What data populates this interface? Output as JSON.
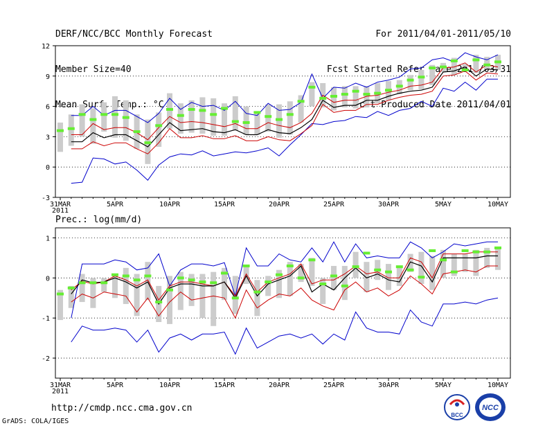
{
  "header": {
    "line1": "DERF/NCC/BCC Monthly Forecast",
    "line2": "Member Size=40",
    "line3": "Mean Surf. Temp.: °C",
    "right1": "For 2011/04/01-2011/05/10",
    "right2": "Fcst Started Refer Date 2011/03/31",
    "right3": "Fcst Produced Date 2011/04/01"
  },
  "footer": {
    "url": "http://cmdp.ncc.cma.gov.cn",
    "grads": "GrADS: COLA/IGES",
    "logo_bcc": "BCC",
    "logo_ncc": "NCC"
  },
  "colors": {
    "box": "#cccccc",
    "mean": "#000000",
    "sd": "#cc0000",
    "minmax": "#0000cc",
    "median": "#66ee33"
  },
  "chart_data": [
    {
      "type": "box-whisker-line",
      "title": "Mean Surf. Temp.: °C",
      "x_days": 41,
      "x_tick_labels": [
        "31MAR\n2011",
        "5APR",
        "10APR",
        "15APR",
        "20APR",
        "25APR",
        "30APR",
        "5MAY",
        "10MAY"
      ],
      "ylim": [
        -3,
        12
      ],
      "yticks": [
        -3,
        0,
        3,
        6,
        9,
        12
      ],
      "series": {
        "max": [
          null,
          5.1,
          5.1,
          6.0,
          5.1,
          5.6,
          5.6,
          5.0,
          4.4,
          5.3,
          6.8,
          5.7,
          6.4,
          6.0,
          6.1,
          5.6,
          6.5,
          5.3,
          5.1,
          6.3,
          5.6,
          5.7,
          6.4,
          9.2,
          6.8,
          7.9,
          7.8,
          8.3,
          7.9,
          8.4,
          8.6,
          8.9,
          9.7,
          9.8,
          10.6,
          10.8,
          10.4,
          11.3,
          10.9,
          10.6,
          11.1
        ],
        "sd_up": [
          null,
          3.2,
          3.2,
          4.3,
          3.7,
          3.9,
          3.9,
          3.4,
          2.7,
          3.9,
          5.0,
          4.4,
          4.5,
          4.4,
          4.2,
          4.0,
          4.3,
          3.8,
          3.8,
          4.4,
          4.1,
          3.9,
          4.4,
          5.3,
          7.1,
          6.4,
          6.6,
          6.6,
          7.0,
          7.1,
          7.4,
          7.6,
          8.0,
          8.1,
          8.4,
          9.8,
          9.9,
          10.3,
          9.4,
          10.1,
          9.9
        ],
        "mean": [
          null,
          2.5,
          2.5,
          3.4,
          2.9,
          3.2,
          3.2,
          2.6,
          2.0,
          3.2,
          4.4,
          3.6,
          3.7,
          3.8,
          3.5,
          3.4,
          3.7,
          3.2,
          3.2,
          3.7,
          3.4,
          3.3,
          3.9,
          4.7,
          6.6,
          5.9,
          6.1,
          6.1,
          6.6,
          6.6,
          7.0,
          7.3,
          7.5,
          7.6,
          7.9,
          9.4,
          9.5,
          9.9,
          9.0,
          9.7,
          9.6
        ],
        "sd_low": [
          null,
          1.8,
          1.8,
          2.5,
          2.1,
          2.4,
          2.4,
          1.8,
          1.3,
          2.4,
          3.8,
          2.9,
          2.9,
          3.1,
          2.8,
          2.8,
          3.1,
          2.6,
          2.6,
          3.0,
          2.7,
          2.6,
          3.3,
          4.1,
          6.2,
          5.4,
          5.6,
          5.6,
          6.2,
          6.2,
          6.6,
          6.9,
          7.1,
          7.2,
          7.5,
          9.0,
          9.1,
          9.5,
          8.6,
          9.3,
          9.2
        ],
        "min": [
          null,
          -1.6,
          -1.5,
          0.9,
          0.8,
          0.3,
          0.5,
          -0.3,
          -1.3,
          0.2,
          1.0,
          1.3,
          1.2,
          1.6,
          1.1,
          1.3,
          1.5,
          1.4,
          1.6,
          1.9,
          1.1,
          2.2,
          3.2,
          4.3,
          4.2,
          4.5,
          4.6,
          5.0,
          4.9,
          5.5,
          5.1,
          5.6,
          5.8,
          6.5,
          6.0,
          7.8,
          7.5,
          8.4,
          7.6,
          8.7,
          8.7
        ],
        "median": [
          3.6,
          3.8,
          5.2,
          4.7,
          5.2,
          5.2,
          4.9,
          3.5,
          2.4,
          4.1,
          5.7,
          5.1,
          5.7,
          5.6,
          5.2,
          5.8,
          4.5,
          4.4,
          5.4,
          5.0,
          4.7,
          5.2,
          6.5,
          7.9,
          6.8,
          7.0,
          7.2,
          7.5,
          7.2,
          7.3,
          7.6,
          8.0,
          8.6,
          8.9,
          9.8,
          9.9,
          10.5,
          9.6,
          10.6,
          10.1,
          10.4
        ],
        "box_top": [
          4.4,
          5.2,
          6.2,
          5.8,
          6.4,
          7.0,
          6.6,
          5.2,
          4.7,
          5.4,
          7.3,
          6.3,
          6.6,
          6.9,
          6.8,
          6.3,
          7.0,
          6.0,
          5.5,
          6.2,
          6.2,
          6.5,
          7.1,
          8.4,
          8.3,
          7.9,
          8.0,
          8.0,
          8.0,
          8.3,
          8.5,
          8.6,
          9.1,
          9.6,
          10.1,
          10.3,
          10.8,
          10.2,
          11.1,
          10.9,
          11.1
        ],
        "box_bot": [
          1.5,
          2.1,
          3.0,
          2.3,
          3.5,
          2.9,
          2.6,
          1.8,
          0.3,
          2.0,
          3.8,
          3.3,
          3.4,
          3.3,
          3.1,
          3.1,
          3.6,
          3.2,
          3.2,
          3.5,
          2.9,
          3.2,
          4.4,
          6.0,
          5.9,
          5.6,
          5.9,
          5.8,
          5.9,
          6.3,
          6.6,
          7.2,
          7.6,
          7.7,
          8.1,
          9.4,
          9.1,
          9.9,
          9.3,
          9.7,
          9.6
        ]
      }
    },
    {
      "type": "box-whisker-line",
      "title": "Prec.: log(mm/d)",
      "x_days": 41,
      "x_tick_labels": [
        "31MAR\n2011",
        "5APR",
        "10APR",
        "15APR",
        "20APR",
        "25APR",
        "30APR",
        "5MAY",
        "10MAY"
      ],
      "ylim": [
        -2.5,
        1.25
      ],
      "yticks": [
        -2,
        -1,
        0,
        1
      ],
      "series": {
        "max": [
          null,
          -1.0,
          0.35,
          0.35,
          0.35,
          0.45,
          0.4,
          0.2,
          0.25,
          0.6,
          -0.2,
          0.2,
          0.35,
          0.35,
          0.3,
          0.38,
          -0.45,
          0.75,
          0.3,
          0.3,
          0.6,
          0.45,
          0.4,
          0.75,
          0.4,
          0.9,
          0.4,
          0.85,
          0.5,
          0.55,
          0.5,
          0.5,
          0.9,
          0.75,
          0.5,
          0.65,
          0.85,
          0.8,
          0.85,
          0.9,
          0.9
        ],
        "sd_up": [
          null,
          -0.3,
          -0.08,
          -0.15,
          -0.1,
          0.05,
          -0.05,
          -0.2,
          -0.05,
          -0.55,
          -0.2,
          -0.1,
          -0.1,
          -0.15,
          -0.2,
          -0.1,
          -0.45,
          0.1,
          -0.35,
          -0.1,
          0.0,
          0.1,
          0.35,
          -0.15,
          -0.05,
          -0.05,
          0.1,
          0.3,
          0.1,
          0.15,
          0.0,
          0.0,
          0.5,
          0.4,
          0.0,
          0.6,
          0.6,
          0.6,
          0.65,
          0.65,
          0.65
        ],
        "mean": [
          null,
          -0.4,
          -0.05,
          -0.12,
          -0.1,
          0.0,
          -0.1,
          -0.25,
          -0.1,
          -0.65,
          -0.25,
          -0.15,
          -0.15,
          -0.2,
          -0.2,
          -0.1,
          -0.5,
          0.05,
          -0.45,
          -0.15,
          -0.05,
          0.05,
          0.3,
          -0.35,
          -0.15,
          -0.3,
          0.0,
          0.25,
          0.0,
          0.1,
          -0.05,
          -0.1,
          0.4,
          0.3,
          -0.1,
          0.5,
          0.5,
          0.5,
          0.5,
          0.55,
          0.55
        ],
        "sd_low": [
          null,
          -0.6,
          -0.4,
          -0.5,
          -0.35,
          -0.4,
          -0.45,
          -0.85,
          -0.5,
          -0.95,
          -0.6,
          -0.35,
          -0.55,
          -0.5,
          -0.45,
          -0.5,
          -1.0,
          -0.3,
          -0.75,
          -0.55,
          -0.4,
          -0.45,
          -0.25,
          -0.55,
          -0.7,
          -0.8,
          -0.3,
          -0.1,
          -0.35,
          -0.25,
          -0.45,
          -0.3,
          0.05,
          -0.15,
          -0.4,
          0.1,
          0.15,
          0.2,
          0.15,
          0.3,
          0.3
        ],
        "min": [
          null,
          -1.6,
          -1.2,
          -1.3,
          -1.3,
          -1.25,
          -1.3,
          -1.6,
          -1.3,
          -1.85,
          -1.5,
          -1.4,
          -1.55,
          -1.4,
          -1.4,
          -1.35,
          -1.9,
          -1.25,
          -1.75,
          -1.6,
          -1.45,
          -1.4,
          -1.5,
          -1.4,
          -1.65,
          -1.4,
          -1.55,
          -0.85,
          -1.25,
          -1.35,
          -1.35,
          -1.4,
          -0.8,
          -1.1,
          -1.2,
          -0.65,
          -0.65,
          -0.6,
          -0.65,
          -0.55,
          -0.5
        ],
        "median": [
          -0.4,
          -0.25,
          -0.12,
          -0.12,
          -0.12,
          0.08,
          0.05,
          -0.05,
          0.05,
          -0.6,
          -0.3,
          0.0,
          -0.05,
          -0.1,
          -0.12,
          0.12,
          -0.5,
          0.3,
          -0.35,
          -0.1,
          0.08,
          0.3,
          0.0,
          0.45,
          -0.15,
          0.05,
          -0.2,
          0.28,
          0.62,
          0.2,
          0.15,
          0.28,
          0.2,
          0.02,
          0.68,
          0.45,
          0.15,
          0.68,
          0.65,
          0.65,
          0.75
        ],
        "box_top": [
          -0.3,
          -0.2,
          0.1,
          0.0,
          0.0,
          0.1,
          0.25,
          0.1,
          0.4,
          -0.2,
          0.05,
          0.15,
          0.1,
          0.1,
          0.15,
          0.25,
          0.05,
          0.3,
          -0.05,
          0.05,
          0.2,
          0.4,
          0.35,
          0.5,
          0.0,
          0.3,
          0.3,
          0.65,
          0.4,
          0.45,
          0.35,
          0.3,
          0.6,
          0.65,
          0.55,
          0.7,
          0.6,
          0.6,
          0.7,
          0.75,
          0.75
        ],
        "box_bot": [
          -1.05,
          -0.75,
          -0.6,
          -0.75,
          -0.35,
          -0.5,
          -0.65,
          -0.95,
          -0.55,
          -1.1,
          -1.15,
          -0.8,
          -0.7,
          -1.0,
          -1.2,
          -0.55,
          -0.9,
          -0.15,
          -0.95,
          -0.45,
          -0.5,
          -0.45,
          -0.1,
          -0.2,
          -0.65,
          -0.3,
          -0.55,
          0.0,
          -0.35,
          -0.05,
          -0.3,
          -0.2,
          0.15,
          -0.15,
          -0.3,
          0.0,
          0.05,
          0.15,
          0.05,
          0.25,
          0.2
        ]
      }
    }
  ]
}
